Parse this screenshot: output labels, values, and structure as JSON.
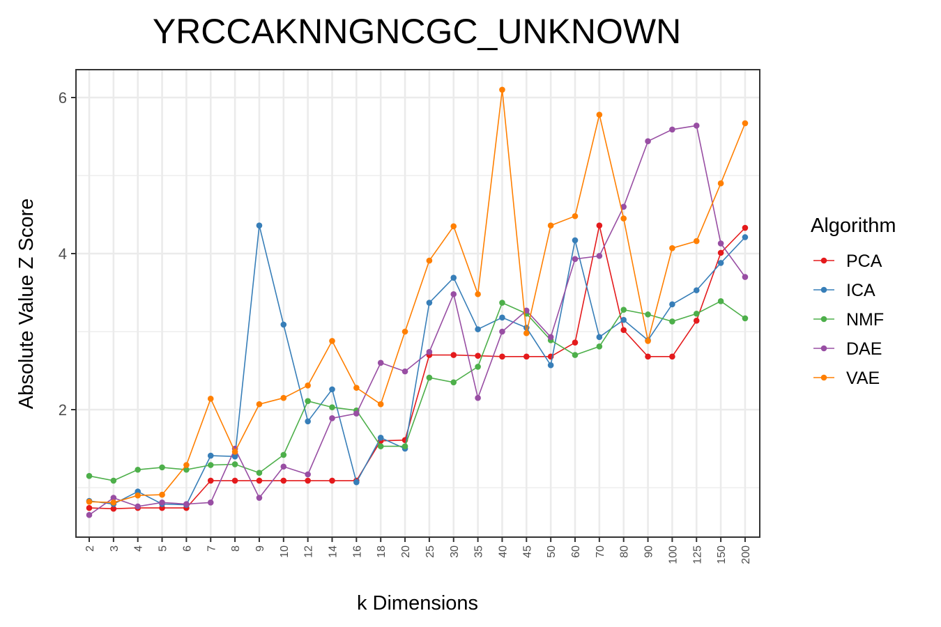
{
  "chart_data": {
    "type": "line",
    "title": "YRCCAKNNGNCGC_UNKNOWN",
    "xlabel": "k Dimensions",
    "ylabel": "Absolute Value Z Score",
    "categories": [
      "2",
      "3",
      "4",
      "5",
      "6",
      "7",
      "8",
      "9",
      "10",
      "12",
      "14",
      "16",
      "18",
      "20",
      "25",
      "30",
      "35",
      "40",
      "45",
      "50",
      "60",
      "70",
      "80",
      "90",
      "100",
      "125",
      "150",
      "200"
    ],
    "yticks": [
      "2",
      "4",
      "6"
    ],
    "ylim": [
      0.5,
      6.3
    ],
    "grid": true,
    "legend": {
      "title": "Algorithm",
      "position": "right"
    },
    "series": [
      {
        "name": "PCA",
        "color": "#e41a1c",
        "values": [
          0.74,
          0.73,
          0.74,
          0.74,
          0.74,
          1.09,
          1.09,
          1.09,
          1.09,
          1.09,
          1.09,
          1.09,
          1.6,
          1.61,
          2.7,
          2.7,
          2.69,
          2.68,
          2.68,
          2.68,
          2.86,
          4.36,
          3.02,
          2.68,
          2.68,
          3.14,
          4.01,
          4.33
        ]
      },
      {
        "name": "ICA",
        "color": "#377eb8",
        "values": [
          0.83,
          0.79,
          0.95,
          0.79,
          0.78,
          1.41,
          1.4,
          4.36,
          3.09,
          1.85,
          2.26,
          1.07,
          1.64,
          1.5,
          3.37,
          3.69,
          3.03,
          3.18,
          3.05,
          2.57,
          4.17,
          2.93,
          3.15,
          2.89,
          3.35,
          3.53,
          3.88,
          4.21
        ]
      },
      {
        "name": "NMF",
        "color": "#4daf4a",
        "values": [
          1.15,
          1.09,
          1.23,
          1.26,
          1.23,
          1.29,
          1.3,
          1.19,
          1.42,
          2.11,
          2.03,
          1.99,
          1.53,
          1.53,
          2.41,
          2.35,
          2.55,
          3.37,
          3.23,
          2.89,
          2.7,
          2.81,
          3.28,
          3.22,
          3.13,
          3.23,
          3.39,
          3.17
        ]
      },
      {
        "name": "DAE",
        "color": "#984ea3",
        "values": [
          0.65,
          0.87,
          0.76,
          0.81,
          0.79,
          0.81,
          1.5,
          0.87,
          1.27,
          1.17,
          1.89,
          1.95,
          2.6,
          2.49,
          2.74,
          3.48,
          2.15,
          3.0,
          3.27,
          2.93,
          3.93,
          3.97,
          4.6,
          5.44,
          5.59,
          5.64,
          4.13,
          3.7
        ]
      },
      {
        "name": "VAE",
        "color": "#ff7f00",
        "values": [
          0.82,
          0.81,
          0.9,
          0.91,
          1.29,
          2.14,
          1.46,
          2.07,
          2.15,
          2.31,
          2.88,
          2.28,
          2.07,
          3.0,
          3.91,
          4.35,
          3.48,
          6.1,
          2.98,
          4.36,
          4.48,
          5.78,
          4.45,
          2.88,
          4.07,
          4.16,
          4.9,
          5.67
        ]
      }
    ]
  }
}
